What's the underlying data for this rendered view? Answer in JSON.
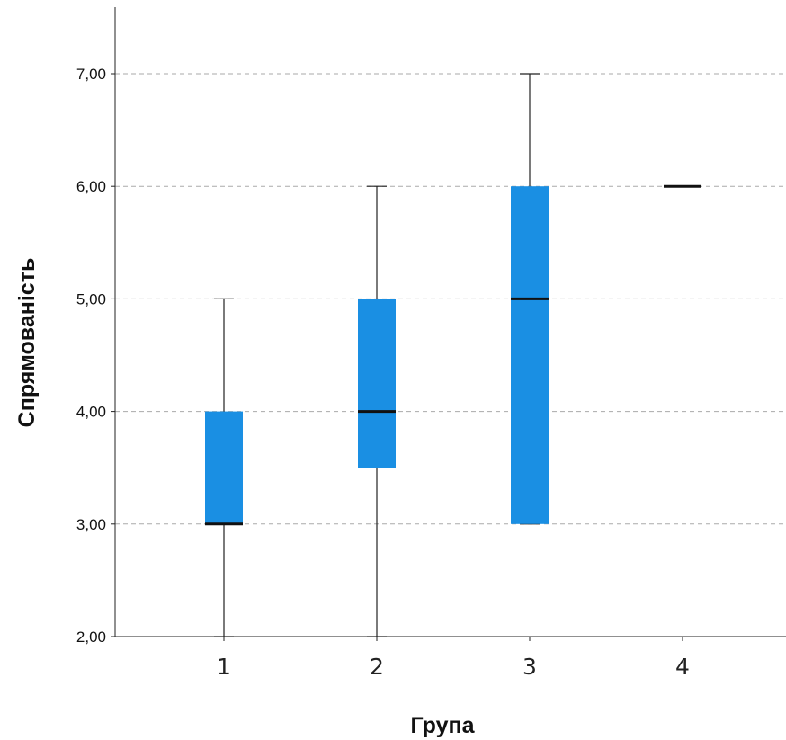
{
  "chart_data": {
    "type": "boxplot",
    "title": "",
    "xlabel": "Група",
    "ylabel": "Спрямованість",
    "ylim": [
      2,
      7.5
    ],
    "yticks": [
      2,
      3,
      4,
      5,
      6,
      7
    ],
    "ytick_labels": [
      "2,00",
      "3,00",
      "4,00",
      "5,00",
      "6,00",
      "7,00"
    ],
    "grid": "horizontal dashed",
    "categories": [
      "1",
      "2",
      "3",
      "4"
    ],
    "boxes": [
      {
        "group": "1",
        "min": 2,
        "q1": 3,
        "median": 3,
        "q3": 4,
        "max": 5
      },
      {
        "group": "2",
        "min": 2,
        "q1": 3.5,
        "median": 4,
        "q3": 5,
        "max": 6
      },
      {
        "group": "3",
        "min": 3,
        "q1": 3,
        "median": 5,
        "q3": 6,
        "max": 7
      },
      {
        "group": "4",
        "min": 6,
        "q1": 6,
        "median": 6,
        "q3": 6,
        "max": 6
      }
    ],
    "colors": {
      "box": "#1a8fe3",
      "median": "#111111",
      "grid": "#aaaaaa",
      "axis": "#222222"
    }
  }
}
